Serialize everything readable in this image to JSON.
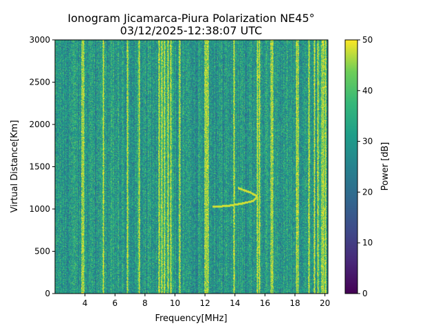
{
  "chart_data": {
    "type": "heatmap",
    "title": "Ionogram Jicamarca-Piura Polarization NE45°",
    "subtitle": "03/12/2025-12:38:07 UTC",
    "xlabel": "Frequency[MHz]",
    "ylabel": "Virtual Distance[Km]",
    "xlim": [
      2.0,
      20.2
    ],
    "ylim": [
      0,
      3000
    ],
    "x_ticks": [
      4,
      6,
      8,
      10,
      12,
      14,
      16,
      18,
      20
    ],
    "y_ticks": [
      0,
      500,
      1000,
      1500,
      2000,
      2500,
      3000
    ],
    "colorbar": {
      "label": "Power [dB]",
      "range": [
        0,
        50
      ],
      "ticks": [
        0,
        10,
        20,
        30,
        40,
        50
      ],
      "colormap": "viridis"
    },
    "grid": false,
    "noise_floor_db": [
      20,
      40
    ],
    "interference_lines_mhz": [
      3.8,
      3.9,
      5.2,
      6.8,
      7.6,
      8.9,
      9.1,
      9.3,
      9.5,
      9.7,
      10.3,
      12.0,
      12.1,
      12.2,
      13.9,
      15.5,
      15.6,
      16.4,
      16.5,
      18.1,
      18.2,
      18.9,
      19.3,
      19.5,
      19.8,
      19.9,
      20.0
    ],
    "ionospheric_trace": {
      "description_points": [
        {
          "freq_mhz": 12.5,
          "km": 1030
        },
        {
          "freq_mhz": 13.5,
          "km": 1040
        },
        {
          "freq_mhz": 14.5,
          "km": 1070
        },
        {
          "freq_mhz": 15.2,
          "km": 1100
        },
        {
          "freq_mhz": 15.5,
          "km": 1150
        },
        {
          "freq_mhz": 15.0,
          "km": 1200
        },
        {
          "freq_mhz": 14.2,
          "km": 1250
        }
      ],
      "power_db": 48
    }
  }
}
